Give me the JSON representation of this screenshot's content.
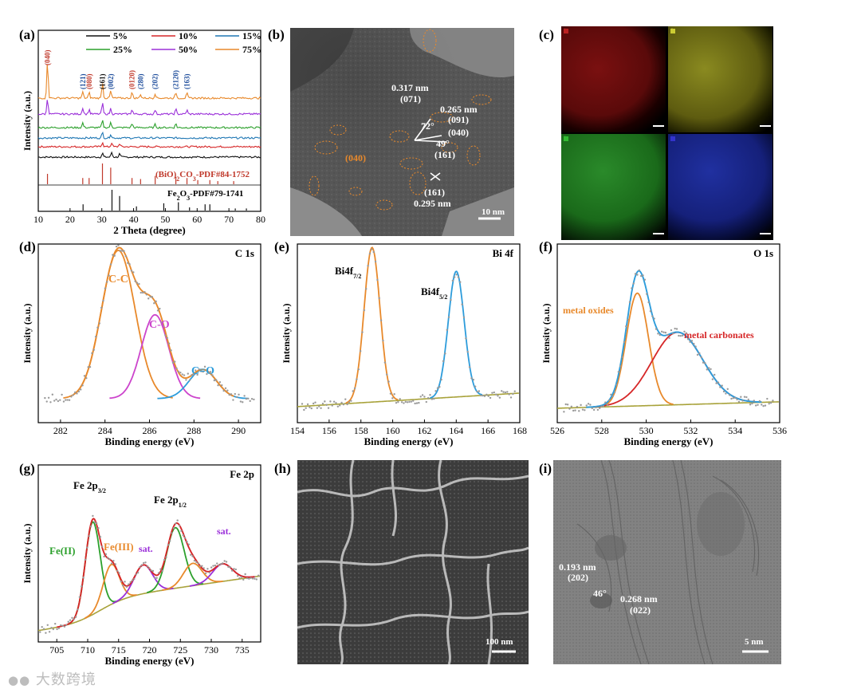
{
  "labels": {
    "a": "(a)",
    "b": "(b)",
    "c": "(c)",
    "d": "(d)",
    "e": "(e)",
    "f": "(f)",
    "g": "(g)",
    "h": "(h)",
    "i": "(i)"
  },
  "micrographs": {
    "b": {
      "d1": "0.317 nm",
      "h1": "(071)",
      "d2": "0.265 nm",
      "h2": "(091)",
      "ang1": "72°",
      "h3": "(040)",
      "ang2": "49°",
      "h4": "(161)",
      "h5": "(161)",
      "d3": "0.295 nm",
      "hl": "(040)",
      "scale": "10 nm"
    },
    "c": {
      "tags": [
        "Bi",
        "C",
        "Fe",
        "O"
      ]
    },
    "h": {
      "scale": "100 nm"
    },
    "i": {
      "d1": "0.193 nm",
      "h1": "(202)",
      "ang": "46°",
      "d2": "0.268 nm",
      "h2": "(022)",
      "scale": "5 nm"
    }
  },
  "watermark": "大数跨境",
  "colors": {
    "orange": "#E8892B",
    "blue": "#2D9CDB",
    "red": "#D62728",
    "green": "#2CA02C",
    "purple": "#9B30D9",
    "olive": "#A8A23A",
    "black": "#111111",
    "darkred": "#C0392B",
    "navy": "#1F4E9C"
  },
  "chart_data": [
    {
      "id": "a",
      "type": "line",
      "xlabel": "2 Theta (degree)",
      "ylabel": "Intensity (a.u.)",
      "xlim": [
        10,
        80
      ],
      "xticks": [
        10,
        20,
        30,
        40,
        50,
        60,
        70,
        80
      ],
      "legend": [
        {
          "name": "5%",
          "color": "#111111"
        },
        {
          "name": "10%",
          "color": "#D62728"
        },
        {
          "name": "15%",
          "color": "#1F77B4"
        },
        {
          "name": "25%",
          "color": "#2CA02C"
        },
        {
          "name": "50%",
          "color": "#9B30D9"
        },
        {
          "name": "75%",
          "color": "#E8892B"
        }
      ],
      "series": [
        {
          "name": "5%",
          "color": "#111111",
          "offset": 0,
          "peaks": [
            [
              30.2,
              5
            ],
            [
              33.1,
              6
            ],
            [
              35.6,
              4
            ]
          ]
        },
        {
          "name": "10%",
          "color": "#D62728",
          "offset": 1,
          "peaks": [
            [
              30.2,
              6
            ],
            [
              33.1,
              5
            ],
            [
              35.6,
              4
            ]
          ]
        },
        {
          "name": "15%",
          "color": "#1F77B4",
          "offset": 2,
          "peaks": [
            [
              30.2,
              7
            ],
            [
              32.8,
              5
            ]
          ]
        },
        {
          "name": "25%",
          "color": "#2CA02C",
          "offset": 3,
          "peaks": [
            [
              24.0,
              6
            ],
            [
              30.2,
              9
            ],
            [
              32.8,
              6
            ],
            [
              39.5,
              5
            ],
            [
              46.8,
              4
            ],
            [
              53.3,
              5
            ]
          ]
        },
        {
          "name": "50%",
          "color": "#9B30D9",
          "offset": 4,
          "peaks": [
            [
              12.9,
              20
            ],
            [
              24.0,
              8
            ],
            [
              26.0,
              6
            ],
            [
              30.2,
              14
            ],
            [
              32.8,
              7
            ],
            [
              39.5,
              6
            ],
            [
              46.8,
              5
            ],
            [
              53.3,
              6
            ],
            [
              56.8,
              5
            ]
          ]
        },
        {
          "name": "75%",
          "color": "#E8892B",
          "offset": 5,
          "peaks": [
            [
              12.9,
              48
            ],
            [
              24.0,
              8
            ],
            [
              26.0,
              7
            ],
            [
              30.2,
              20
            ],
            [
              32.8,
              9
            ],
            [
              39.5,
              7
            ],
            [
              42.2,
              5
            ],
            [
              46.8,
              6
            ],
            [
              53.3,
              7
            ],
            [
              56.8,
              6
            ]
          ]
        }
      ],
      "hkl": [
        {
          "x": 12.9,
          "label": "(040)",
          "color": "#C0392B"
        },
        {
          "x": 24.0,
          "label": "(121)",
          "color": "#1F4E9C"
        },
        {
          "x": 26.0,
          "label": "(080)",
          "color": "#C0392B"
        },
        {
          "x": 30.2,
          "label": "(161)",
          "color": "#111111"
        },
        {
          "x": 32.8,
          "label": "(002)",
          "color": "#1F4E9C"
        },
        {
          "x": 39.5,
          "label": "(0120)",
          "color": "#C0392B"
        },
        {
          "x": 42.2,
          "label": "(280)",
          "color": "#1F4E9C"
        },
        {
          "x": 46.8,
          "label": "(202)",
          "color": "#1F4E9C"
        },
        {
          "x": 53.3,
          "label": "(2120)",
          "color": "#1F4E9C"
        },
        {
          "x": 56.8,
          "label": "(163)",
          "color": "#1F4E9C"
        }
      ],
      "ref_bi": {
        "label": "(BiO)2CO3-PDF#84-1752",
        "color": "#C0392B",
        "sticks": [
          [
            12.9,
            0.5
          ],
          [
            24.0,
            0.3
          ],
          [
            26.0,
            0.3
          ],
          [
            30.2,
            1.0
          ],
          [
            32.8,
            0.8
          ],
          [
            39.5,
            0.3
          ],
          [
            42.2,
            0.25
          ],
          [
            46.8,
            0.4
          ],
          [
            53.3,
            0.35
          ],
          [
            56.8,
            0.3
          ],
          [
            60.2,
            0.2
          ],
          [
            64.0,
            0.2
          ],
          [
            66.5,
            0.15
          ],
          [
            71.5,
            0.15
          ]
        ]
      },
      "ref_fe": {
        "label": "Fe2O3-PDF#79-1741",
        "color": "#111111",
        "sticks": [
          [
            24.1,
            0.3
          ],
          [
            33.2,
            1.0
          ],
          [
            35.6,
            0.7
          ],
          [
            40.9,
            0.2
          ],
          [
            49.5,
            0.35
          ],
          [
            54.1,
            0.4
          ],
          [
            57.6,
            0.15
          ],
          [
            62.5,
            0.3
          ],
          [
            64.0,
            0.3
          ],
          [
            72.0,
            0.1
          ],
          [
            75.5,
            0.1
          ]
        ]
      }
    },
    {
      "id": "d",
      "type": "line",
      "title": "C 1s",
      "xlabel": "Binding energy (eV)",
      "ylabel": "Intensity (a.u.)",
      "xlim": [
        281,
        291
      ],
      "xticks": [
        282,
        284,
        286,
        288,
        290
      ],
      "ylim": [
        0,
        1.05
      ],
      "baseline": 0.1,
      "components": [
        {
          "name": "C-C",
          "center": 284.6,
          "amp": 0.92,
          "sigma": 0.75,
          "color": "#E8892B"
        },
        {
          "name": "C-O",
          "center": 286.25,
          "amp": 0.52,
          "sigma": 0.62,
          "color": "#CC44CC"
        },
        {
          "name": "C=O",
          "center": 288.4,
          "amp": 0.18,
          "sigma": 0.62,
          "color": "#2D9CDB"
        }
      ],
      "envelope_color": "#E8892B"
    },
    {
      "id": "e",
      "type": "line",
      "title": "Bi 4f",
      "xlabel": "Binding energy (eV)",
      "ylabel": "Intensity (a.u.)",
      "xlim": [
        154,
        168
      ],
      "xticks": [
        154,
        156,
        158,
        160,
        162,
        164,
        166,
        168
      ],
      "ylim": [
        0,
        1.1
      ],
      "baseline": 0.05,
      "baseline_slope": 0.006,
      "components": [
        {
          "name": "Bi4f7/2",
          "center": 158.7,
          "amp": 0.96,
          "sigma": 0.5,
          "color": "#E8892B"
        },
        {
          "name": "Bi4f5/2",
          "center": 164.0,
          "amp": 0.78,
          "sigma": 0.5,
          "color": "#2D9CDB"
        }
      ],
      "baseline_color": "#A8A23A"
    },
    {
      "id": "f",
      "type": "line",
      "title": "O 1s",
      "xlabel": "Binding energy (eV)",
      "ylabel": "Intensity (a.u.)",
      "xlim": [
        526,
        536
      ],
      "xticks": [
        526,
        528,
        530,
        532,
        534,
        536
      ],
      "ylim": [
        0,
        1.05
      ],
      "baseline": 0.04,
      "baseline_slope": 0.004,
      "components": [
        {
          "name": "metal oxides",
          "center": 529.6,
          "amp": 0.7,
          "sigma": 0.5,
          "color": "#E8892B"
        },
        {
          "name": "metal carbonates",
          "center": 531.4,
          "amp": 0.45,
          "sigma": 1.15,
          "color": "#D62728"
        }
      ],
      "envelope_color": "#2D9CDB",
      "baseline_color": "#A8A23A"
    },
    {
      "id": "g",
      "type": "line",
      "title": "Fe 2p",
      "xlabel": "Binding energy (eV)",
      "ylabel": "Intensity (a.u.)",
      "xlim": [
        702,
        738
      ],
      "xticks": [
        705,
        710,
        715,
        720,
        725,
        730,
        735
      ],
      "ylim": [
        0,
        1.05
      ],
      "components": [
        {
          "name": "Fe(II)",
          "center": 710.8,
          "amp": 0.58,
          "sigma": 1.2,
          "color": "#2CA02C"
        },
        {
          "name": "Fe(III)",
          "center": 713.8,
          "amp": 0.25,
          "sigma": 1.3,
          "color": "#E8892B"
        },
        {
          "name": "sat.",
          "center": 719.0,
          "amp": 0.18,
          "sigma": 1.5,
          "color": "#9B30D9"
        },
        {
          "name": "Fe 2p1/2 Fe(II)",
          "center": 724.2,
          "amp": 0.38,
          "sigma": 1.4,
          "color": "#2CA02C"
        },
        {
          "name": "Fe 2p1/2 Fe(III)",
          "center": 727.0,
          "amp": 0.14,
          "sigma": 1.5,
          "color": "#E8892B"
        },
        {
          "name": "sat.",
          "center": 731.8,
          "amp": 0.11,
          "sigma": 1.6,
          "color": "#9B30D9"
        }
      ],
      "baseline_color": "#A8A23A",
      "envelope_color": "#D62728",
      "annotations": {
        "p32": "Fe 2p3/2",
        "p12": "Fe 2p1/2",
        "fe2": "Fe(II)",
        "fe3": "Fe(III)",
        "sat1": "sat.",
        "sat2": "sat."
      }
    }
  ]
}
